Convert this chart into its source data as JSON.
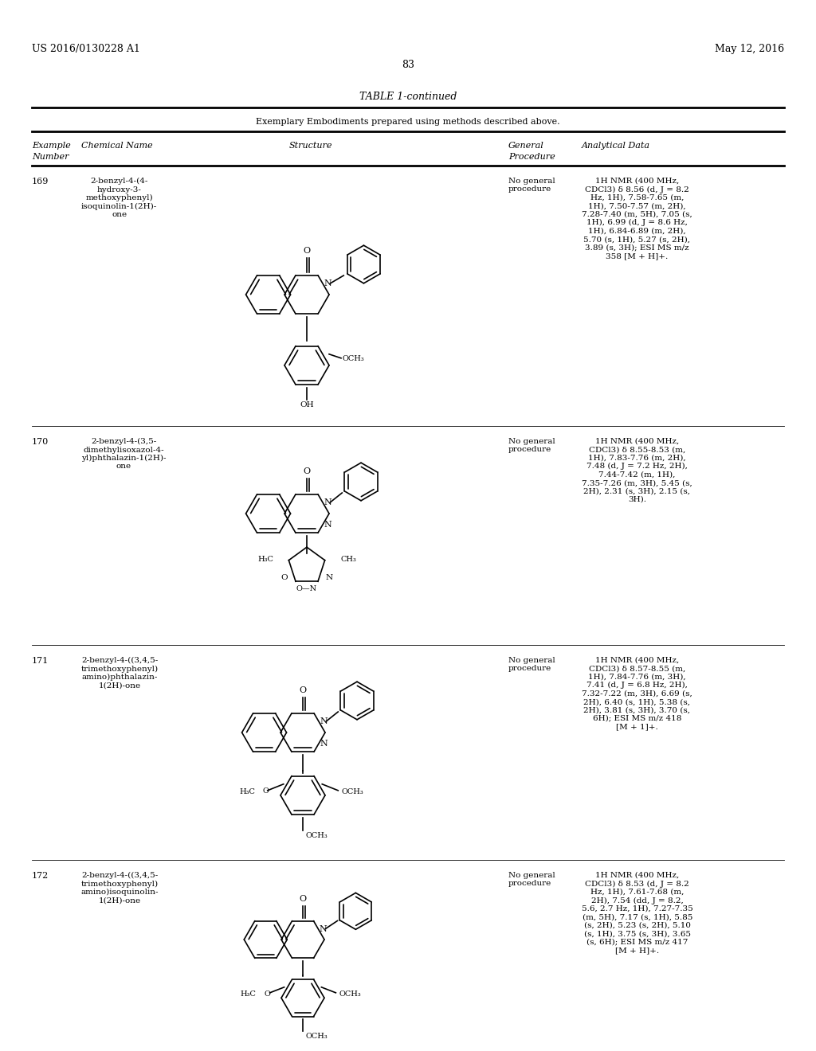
{
  "page_header_left": "US 2016/0130228 A1",
  "page_header_right": "May 12, 2016",
  "page_number": "83",
  "table_title": "TABLE 1-continued",
  "table_subtitle": "Exemplary Embodiments prepared using methods described above.",
  "background_color": "#ffffff",
  "rows": [
    {
      "number": "169",
      "name": "2-benzyl-4-(4-\nhydroxy-3-\nmethoxyphenyl)\nisoquinolin-1(2H)-\none",
      "procedure": "No general\nprocedure",
      "analytical": "1H NMR (400 MHz,\nCDCl3) δ 8.56 (d, J = 8.2\nHz, 1H), 7.58-7.65 (m,\n1H), 7.50-7.57 (m, 2H),\n7.28-7.40 (m, 5H), 7.05 (s,\n1H), 6.99 (d, J = 8.6 Hz,\n1H), 6.84-6.89 (m, 2H),\n5.70 (s, 1H), 5.27 (s, 2H),\n3.89 (s, 3H); ESI MS m/z\n358 [M + H]+."
    },
    {
      "number": "170",
      "name": "2-benzyl-4-(3,5-\ndimethylisoxazol-4-\nyl)phthalazin-1(2H)-\none",
      "procedure": "No general\nprocedure",
      "analytical": "1H NMR (400 MHz,\nCDCl3) δ 8.55-8.53 (m,\n1H), 7.83-7.76 (m, 2H),\n7.48 (d, J = 7.2 Hz, 2H),\n7.44-7.42 (m, 1H),\n7.35-7.26 (m, 3H), 5.45 (s,\n2H), 2.31 (s, 3H), 2.15 (s,\n3H)."
    },
    {
      "number": "171",
      "name": "2-benzyl-4-((3,4,5-\ntrimethoxyphenyl)\namino)phthalazin-\n1(2H)-one",
      "procedure": "No general\nprocedure",
      "analytical": "1H NMR (400 MHz,\nCDCl3) δ 8.57-8.55 (m,\n1H), 7.84-7.76 (m, 3H),\n7.41 (d, J = 6.8 Hz, 2H),\n7.32-7.22 (m, 3H), 6.69 (s,\n2H), 6.40 (s, 1H), 5.38 (s,\n2H), 3.81 (s, 3H), 3.70 (s,\n6H); ESI MS m/z 418\n[M + 1]+."
    },
    {
      "number": "172",
      "name": "2-benzyl-4-((3,4,5-\ntrimethoxyphenyl)\namino)isoquinolin-\n1(2H)-one",
      "procedure": "No general\nprocedure",
      "analytical": "1H NMR (400 MHz,\nCDCl3) δ 8.53 (d, J = 8.2\nHz, 1H), 7.61-7.68 (m,\n2H), 7.54 (dd, J = 8.2,\n5.6, 2.7 Hz, 1H), 7.27-7.35\n(m, 5H), 7.17 (s, 1H), 5.85\n(s, 2H), 5.23 (s, 2H), 5.10\n(s, 1H), 3.75 (s, 3H), 3.65\n(s, 6H); ESI MS m/z 417\n[M + H]+."
    }
  ],
  "font_size_header": 8.5,
  "font_size_body": 7.5,
  "font_size_page_header": 9,
  "font_size_table_title": 9,
  "font_size_subtitle": 8
}
